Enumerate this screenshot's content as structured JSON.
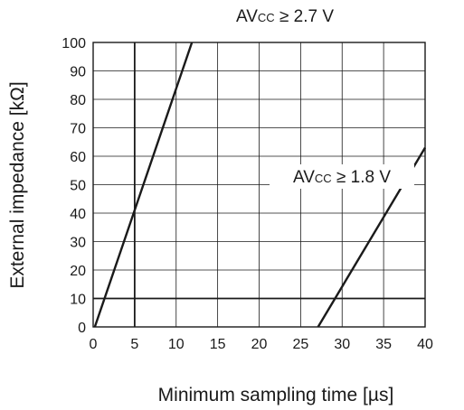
{
  "chart_data": {
    "type": "line",
    "xlabel": "Minimum sampling time [µs]",
    "ylabel": "External impedance [kΩ]",
    "xlim": [
      0,
      40
    ],
    "ylim": [
      0,
      100
    ],
    "xticks": [
      "0",
      "5",
      "10",
      "15",
      "20",
      "25",
      "30",
      "35",
      "40"
    ],
    "yticks": [
      "0",
      "10",
      "20",
      "30",
      "40",
      "50",
      "60",
      "70",
      "80",
      "90",
      "100"
    ],
    "grid": true,
    "emphasized_gridlines": {
      "x": [
        5
      ],
      "y": [
        10
      ]
    },
    "series": [
      {
        "annotation": {
          "prefix": "AV",
          "sub": "CC",
          "suffix": " ≥ 2.7 V"
        },
        "x": [
          0.2,
          11.9
        ],
        "y": [
          0,
          100
        ]
      },
      {
        "annotation": {
          "prefix": "AV",
          "sub": "CC",
          "suffix": " ≥ 1.8 V"
        },
        "x": [
          27.1,
          40
        ],
        "y": [
          0,
          63
        ]
      }
    ]
  }
}
